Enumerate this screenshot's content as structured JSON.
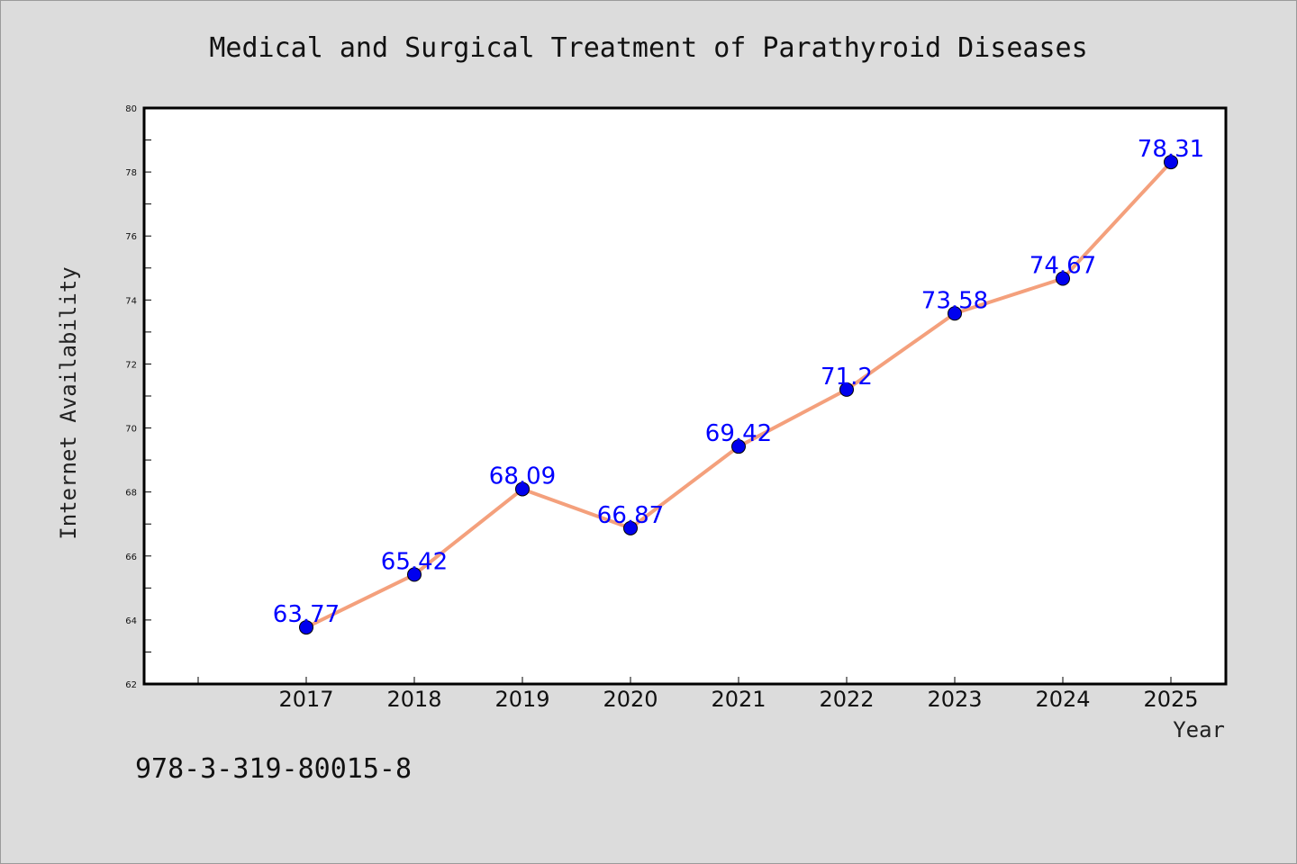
{
  "chart_data": {
    "type": "line",
    "title": "Medical and Surgical Treatment of Parathyroid Diseases",
    "xlabel": "Year",
    "ylabel": "Internet Availability",
    "categories": [
      "2017",
      "2018",
      "2019",
      "2020",
      "2021",
      "2022",
      "2023",
      "2024",
      "2025"
    ],
    "series": [
      {
        "values": [
          63.77,
          65.42,
          68.09,
          66.87,
          69.42,
          71.2,
          73.58,
          74.67,
          78.31
        ],
        "data_labels": [
          "63.77",
          "65.42",
          "68.09",
          "66.87",
          "69.42",
          "71.2",
          "73.58",
          "74.67",
          "78.31"
        ],
        "line_color": "#f4a07c",
        "marker_color": "#0000ee"
      }
    ],
    "ylim": [
      62,
      80
    ],
    "yticks": [
      "62",
      "64",
      "66",
      "68",
      "70",
      "72",
      "74",
      "76",
      "78",
      "80"
    ],
    "grid": false,
    "legend": "none",
    "label_color": "#0000ff"
  },
  "footer": {
    "isbn": "978-3-319-80015-8"
  }
}
